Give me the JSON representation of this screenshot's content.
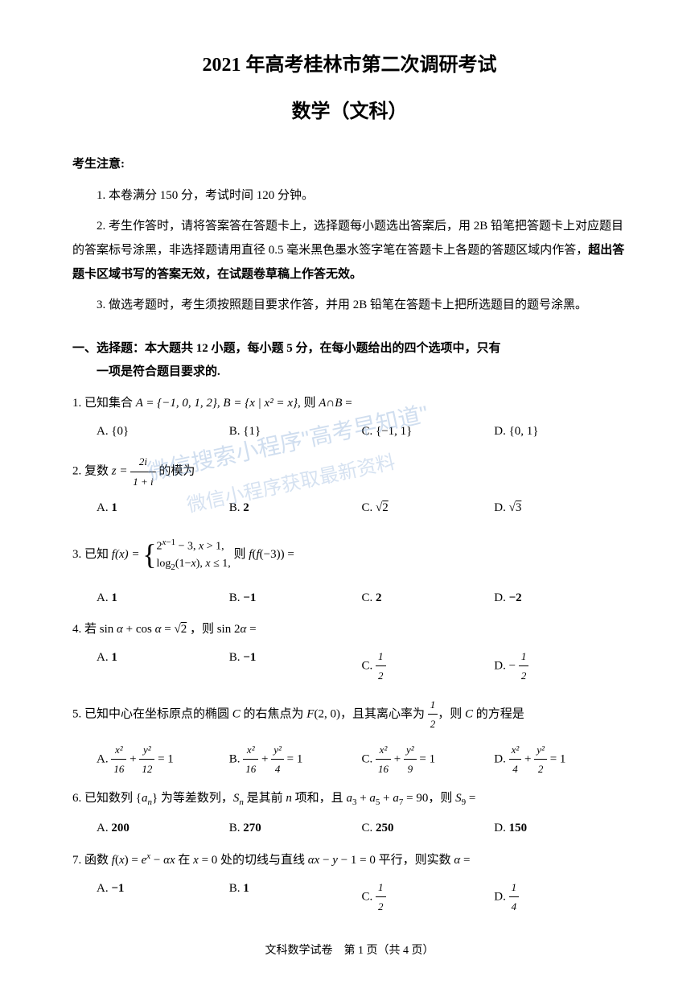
{
  "header": {
    "title_main": "2021 年高考桂林市第二次调研考试",
    "title_sub": "数学（文科）"
  },
  "notice": {
    "header": "考生注意:",
    "items": [
      "1. 本卷满分 150 分，考试时间 120 分钟。",
      "2. 考生作答时，请将答案答在答题卡上，选择题每小题选出答案后，用 2B 铅笔把答题卡上对应题目的答案标号涂黑，非选择题请用直径 0.5 毫米黑色墨水签字笔在答题卡上各题的答题区域内作答，",
      "3. 做选考题时，考生须按照题目要求作答，并用 2B 铅笔在答题卡上把所选题目的题号涂黑。"
    ],
    "bold_part": "超出答题卡区域书写的答案无效，在试题卷草稿上作答无效。"
  },
  "section1": {
    "header_line1": "一、选择题：本大题共 12 小题，每小题 5 分，在每小题给出的四个选项中，只有",
    "header_line2": "一项是符合题目要求的."
  },
  "questions": [
    {
      "num": "1.",
      "text_prefix": "已知集合 ",
      "math": "A = {−1, 0, 1, 2}, B = {x | x² = x}",
      "text_suffix": ", 则 A∩B =",
      "options": [
        "{0}",
        "{1}",
        "{−1, 1}",
        "{0, 1}"
      ]
    },
    {
      "num": "2.",
      "text_prefix": "复数 ",
      "math_frac": {
        "num": "2i",
        "den": "1+i"
      },
      "text_mid": "z = ",
      "text_suffix": " 的模为",
      "options": [
        "1",
        "2",
        "√2",
        "√3"
      ]
    },
    {
      "num": "3.",
      "text_prefix": "已知 ",
      "piecewise": {
        "func": "f(x) = ",
        "row1": "2^(x−1) − 3, x > 1,",
        "row2": "log₂(1−x), x ≤ 1,"
      },
      "text_suffix": " 则 f(f(−3)) =",
      "options": [
        "1",
        "−1",
        "2",
        "−2"
      ]
    },
    {
      "num": "4.",
      "text": "若 sin α + cos α = √2 ，则 sin 2α =",
      "options_frac": [
        {
          "plain": "1"
        },
        {
          "plain": "−1"
        },
        {
          "num": "1",
          "den": "2"
        },
        {
          "neg": true,
          "num": "1",
          "den": "2"
        }
      ]
    },
    {
      "num": "5.",
      "text_prefix": "已知中心在坐标原点的椭圆 C 的右焦点为 F(2, 0)，且其离心率为 ",
      "frac": {
        "num": "1",
        "den": "2"
      },
      "text_suffix": "，则 C 的方程是",
      "options_eq": [
        {
          "a": "16",
          "b": "12"
        },
        {
          "a": "16",
          "b": "4"
        },
        {
          "a": "16",
          "b": "9"
        },
        {
          "a": "4",
          "b": "2"
        }
      ]
    },
    {
      "num": "6.",
      "text": "已知数列 {aₙ} 为等差数列，Sₙ 是其前 n 项和，且 a₃ + a₅ + a₇ = 90，则 S₉ =",
      "options": [
        "200",
        "270",
        "250",
        "150"
      ]
    },
    {
      "num": "7.",
      "text": "函数 f(x) = eˣ − αx 在 x = 0 处的切线与直线 αx − y − 1 = 0 平行，则实数 α =",
      "options_frac": [
        {
          "plain": "−1"
        },
        {
          "plain": "1"
        },
        {
          "num": "1",
          "den": "2"
        },
        {
          "num": "1",
          "den": "4"
        }
      ]
    }
  ],
  "option_labels": [
    "A.",
    "B.",
    "C.",
    "D."
  ],
  "footer": {
    "text": "文科数学试卷　第 1 页（共 4 页）"
  },
  "watermark": {
    "line1": "微信搜索小程序\"高考早知道\"",
    "line2": "微信小程序获取最新资料"
  },
  "colors": {
    "text": "#000000",
    "background": "#ffffff",
    "watermark": "rgba(120,160,210,0.35)"
  }
}
